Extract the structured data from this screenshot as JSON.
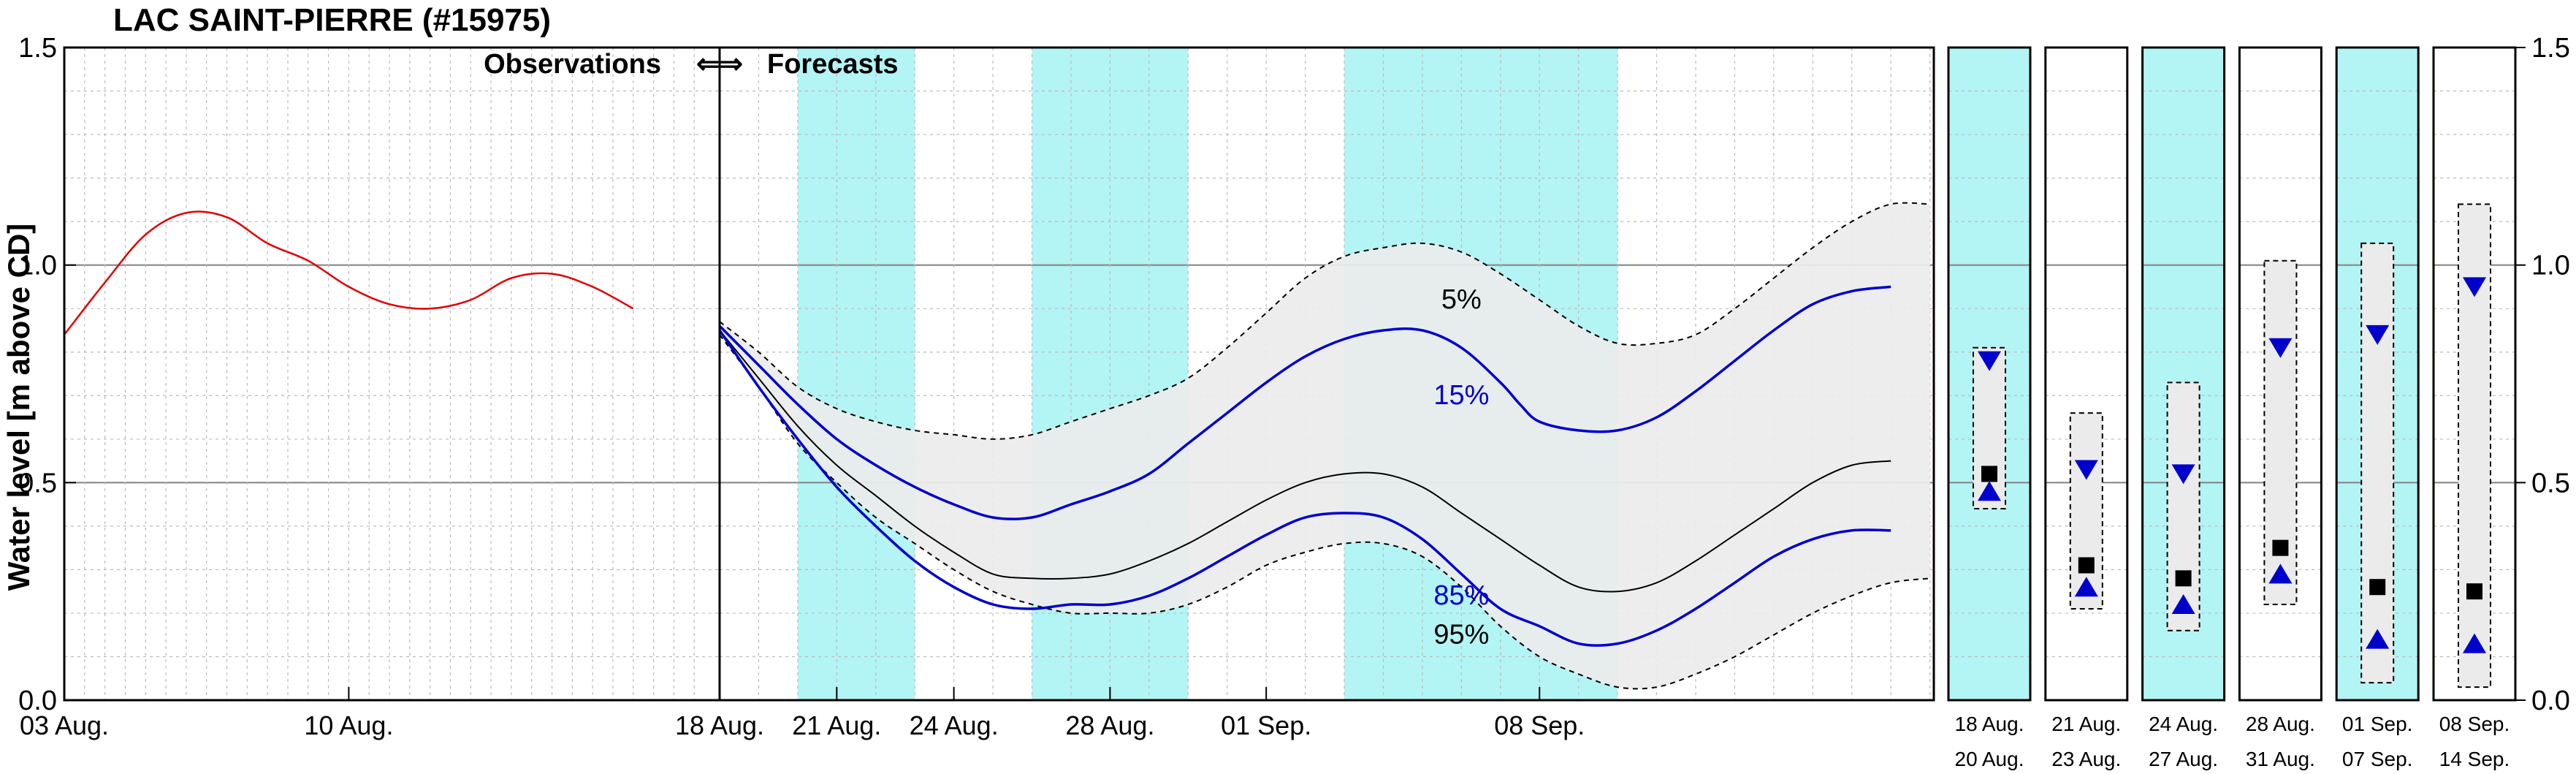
{
  "chart_data": {
    "type": "line",
    "title": "LAC SAINT-PIERRE (#15975)",
    "ylabel": "Water level [m above CD]",
    "ylim": [
      0.0,
      1.5
    ],
    "yticks": [
      "0.0",
      "0.5",
      "1.0",
      "1.5"
    ],
    "grid": true,
    "divider_label": "Observations ⇐⇒ Forecasts",
    "observations": {
      "color": "#e00000",
      "xticks": [
        "03 Aug.",
        "10 Aug."
      ],
      "points": [
        [
          0,
          0.84
        ],
        [
          2,
          0.96
        ],
        [
          4,
          1.07
        ],
        [
          6,
          1.12
        ],
        [
          8,
          1.11
        ],
        [
          10,
          1.05
        ],
        [
          12,
          1.01
        ],
        [
          14,
          0.95
        ],
        [
          16,
          0.91
        ],
        [
          18,
          0.9
        ],
        [
          20,
          0.92
        ],
        [
          22,
          0.97
        ],
        [
          24,
          0.98
        ],
        [
          26,
          0.95
        ],
        [
          28,
          0.9
        ]
      ]
    },
    "forecast": {
      "xticks": [
        "18 Aug.",
        "21 Aug.",
        "24 Aug.",
        "28 Aug.",
        "01 Sep.",
        "08 Sep."
      ],
      "shaded_weeks": [
        [
          2,
          5
        ],
        [
          8,
          12
        ],
        [
          16,
          23
        ]
      ],
      "band_upper": [
        [
          0,
          0.87
        ],
        [
          1,
          0.8
        ],
        [
          2,
          0.72
        ],
        [
          3,
          0.67
        ],
        [
          4,
          0.64
        ],
        [
          5,
          0.62
        ],
        [
          6,
          0.61
        ],
        [
          7,
          0.6
        ],
        [
          8,
          0.61
        ],
        [
          9,
          0.64
        ],
        [
          10,
          0.67
        ],
        [
          11,
          0.7
        ],
        [
          12,
          0.74
        ],
        [
          13,
          0.81
        ],
        [
          14,
          0.89
        ],
        [
          15,
          0.97
        ],
        [
          16,
          1.02
        ],
        [
          17,
          1.04
        ],
        [
          18,
          1.05
        ],
        [
          19,
          1.03
        ],
        [
          20,
          0.98
        ],
        [
          21,
          0.92
        ],
        [
          22,
          0.86
        ],
        [
          23,
          0.82
        ],
        [
          24,
          0.82
        ],
        [
          25,
          0.84
        ],
        [
          26,
          0.9
        ],
        [
          27,
          0.97
        ],
        [
          28,
          1.04
        ],
        [
          29,
          1.1
        ],
        [
          30,
          1.14
        ],
        [
          31,
          1.14
        ]
      ],
      "band_lower": [
        [
          0,
          0.84
        ],
        [
          1,
          0.72
        ],
        [
          2,
          0.59
        ],
        [
          3,
          0.5
        ],
        [
          4,
          0.42
        ],
        [
          5,
          0.36
        ],
        [
          6,
          0.3
        ],
        [
          7,
          0.25
        ],
        [
          8,
          0.22
        ],
        [
          9,
          0.2
        ],
        [
          10,
          0.2
        ],
        [
          11,
          0.2
        ],
        [
          12,
          0.22
        ],
        [
          13,
          0.26
        ],
        [
          14,
          0.31
        ],
        [
          15,
          0.34
        ],
        [
          16,
          0.36
        ],
        [
          17,
          0.36
        ],
        [
          18,
          0.33
        ],
        [
          19,
          0.26
        ],
        [
          20,
          0.17
        ],
        [
          21,
          0.1
        ],
        [
          22,
          0.06
        ],
        [
          23,
          0.03
        ],
        [
          24,
          0.03
        ],
        [
          25,
          0.06
        ],
        [
          26,
          0.1
        ],
        [
          27,
          0.15
        ],
        [
          28,
          0.2
        ],
        [
          29,
          0.24
        ],
        [
          30,
          0.27
        ],
        [
          31,
          0.28
        ]
      ],
      "percentiles": [
        {
          "name": "5%",
          "color": "#000000",
          "label_pos": [
            19.0,
            0.9
          ]
        },
        {
          "name": "15%",
          "color": "#0000cc",
          "label_pos": [
            19.0,
            0.68
          ],
          "points": [
            [
              0,
              0.86
            ],
            [
              1,
              0.77
            ],
            [
              2,
              0.68
            ],
            [
              3,
              0.6
            ],
            [
              4,
              0.54
            ],
            [
              5,
              0.49
            ],
            [
              6,
              0.45
            ],
            [
              7,
              0.42
            ],
            [
              8,
              0.42
            ],
            [
              9,
              0.45
            ],
            [
              10,
              0.48
            ],
            [
              11,
              0.52
            ],
            [
              12,
              0.59
            ],
            [
              13,
              0.66
            ],
            [
              14,
              0.73
            ],
            [
              15,
              0.79
            ],
            [
              16,
              0.83
            ],
            [
              17,
              0.85
            ],
            [
              18,
              0.85
            ],
            [
              19,
              0.81
            ],
            [
              20,
              0.73
            ],
            [
              20.5,
              0.68
            ],
            [
              21,
              0.64
            ],
            [
              22,
              0.62
            ],
            [
              23,
              0.62
            ],
            [
              24,
              0.65
            ],
            [
              25,
              0.71
            ],
            [
              26,
              0.78
            ],
            [
              27,
              0.85
            ],
            [
              28,
              0.91
            ],
            [
              29,
              0.94
            ],
            [
              30,
              0.95
            ]
          ]
        },
        {
          "name": "median",
          "color": "#000000",
          "points": [
            [
              0,
              0.85
            ],
            [
              1,
              0.74
            ],
            [
              2,
              0.63
            ],
            [
              3,
              0.54
            ],
            [
              4,
              0.47
            ],
            [
              5,
              0.4
            ],
            [
              6,
              0.34
            ],
            [
              7,
              0.29
            ],
            [
              8,
              0.28
            ],
            [
              9,
              0.28
            ],
            [
              10,
              0.29
            ],
            [
              11,
              0.32
            ],
            [
              12,
              0.36
            ],
            [
              13,
              0.41
            ],
            [
              14,
              0.46
            ],
            [
              15,
              0.5
            ],
            [
              16,
              0.52
            ],
            [
              17,
              0.52
            ],
            [
              18,
              0.49
            ],
            [
              19,
              0.43
            ],
            [
              20,
              0.37
            ],
            [
              21,
              0.31
            ],
            [
              22,
              0.26
            ],
            [
              23,
              0.25
            ],
            [
              24,
              0.27
            ],
            [
              25,
              0.32
            ],
            [
              26,
              0.38
            ],
            [
              27,
              0.44
            ],
            [
              28,
              0.5
            ],
            [
              29,
              0.54
            ],
            [
              30,
              0.55
            ]
          ]
        },
        {
          "name": "85%",
          "color": "#0000cc",
          "label_pos": [
            19.0,
            0.22
          ],
          "points": [
            [
              0,
              0.85
            ],
            [
              1,
              0.72
            ],
            [
              2,
              0.6
            ],
            [
              3,
              0.49
            ],
            [
              4,
              0.4
            ],
            [
              5,
              0.32
            ],
            [
              6,
              0.26
            ],
            [
              7,
              0.22
            ],
            [
              8,
              0.21
            ],
            [
              9,
              0.22
            ],
            [
              10,
              0.22
            ],
            [
              11,
              0.24
            ],
            [
              12,
              0.28
            ],
            [
              13,
              0.33
            ],
            [
              14,
              0.38
            ],
            [
              15,
              0.42
            ],
            [
              16,
              0.43
            ],
            [
              17,
              0.42
            ],
            [
              18,
              0.37
            ],
            [
              19,
              0.29
            ],
            [
              20,
              0.21
            ],
            [
              21,
              0.17
            ],
            [
              22,
              0.13
            ],
            [
              23,
              0.13
            ],
            [
              24,
              0.16
            ],
            [
              25,
              0.21
            ],
            [
              26,
              0.27
            ],
            [
              27,
              0.33
            ],
            [
              28,
              0.37
            ],
            [
              29,
              0.39
            ],
            [
              30,
              0.39
            ]
          ]
        },
        {
          "name": "95%",
          "color": "#000000",
          "label_pos": [
            19.0,
            0.13
          ]
        }
      ]
    },
    "weekly_panels": [
      {
        "top": "18  Aug.",
        "bottom": "20  Aug.",
        "shaded": true,
        "box": [
          0.44,
          0.81
        ],
        "high": 0.78,
        "mid": 0.52,
        "low": 0.48
      },
      {
        "top": "21  Aug.",
        "bottom": "23  Aug.",
        "shaded": false,
        "box": [
          0.21,
          0.66
        ],
        "high": 0.53,
        "mid": 0.31,
        "low": 0.26
      },
      {
        "top": "24  Aug.",
        "bottom": "27  Aug.",
        "shaded": true,
        "box": [
          0.16,
          0.73
        ],
        "high": 0.52,
        "mid": 0.28,
        "low": 0.22
      },
      {
        "top": "28  Aug.",
        "bottom": "31  Aug.",
        "shaded": false,
        "box": [
          0.22,
          1.01
        ],
        "high": 0.81,
        "mid": 0.35,
        "low": 0.29
      },
      {
        "top": "01  Sep.",
        "bottom": "07  Sep.",
        "shaded": true,
        "box": [
          0.04,
          1.05
        ],
        "high": 0.84,
        "mid": 0.26,
        "low": 0.14
      },
      {
        "top": "08  Sep.",
        "bottom": "14  Sep.",
        "shaded": false,
        "box": [
          0.03,
          1.14
        ],
        "high": 0.95,
        "mid": 0.25,
        "low": 0.13
      }
    ],
    "colors": {
      "shade": "#b3f4f4",
      "band": "#ebebeb",
      "blue": "#0000cc",
      "red": "#e00000",
      "grid": "#bbbbbb"
    }
  }
}
